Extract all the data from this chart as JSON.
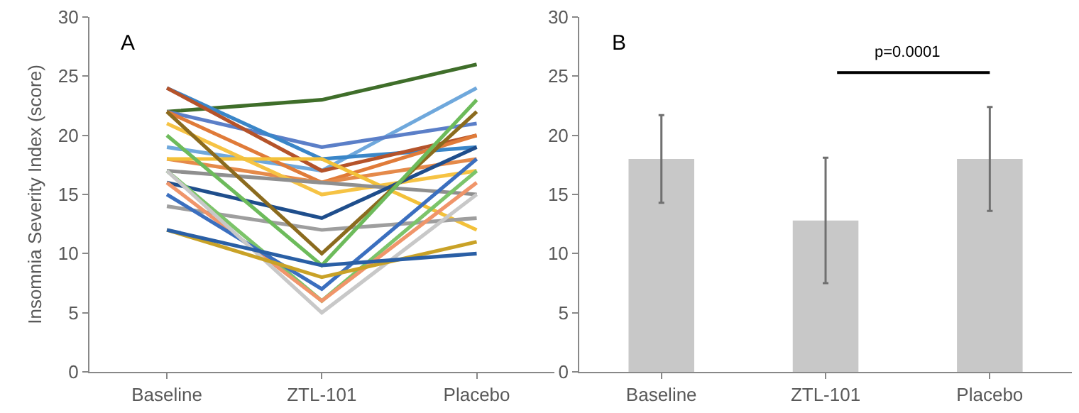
{
  "chart_data": [
    {
      "type": "line",
      "ylabel": "Insomnia Severity Index (score)",
      "annotations": [
        "A"
      ],
      "categories": [
        "Baseline",
        "ZTL-101",
        "Placebo"
      ],
      "ylim": [
        0,
        30
      ],
      "yticks": [
        0,
        5,
        10,
        15,
        20,
        25,
        30
      ],
      "marker": "none",
      "line_style": "solid",
      "series": [
        {
          "color": "#3f6e2a",
          "values": [
            22,
            23,
            26
          ]
        },
        {
          "color": "#6fa8dc",
          "values": [
            19,
            17,
            24
          ]
        },
        {
          "color": "#5b7fc8",
          "values": [
            22,
            19,
            21
          ]
        },
        {
          "color": "#3a86c8",
          "values": [
            24,
            18,
            19
          ]
        },
        {
          "color": "#b5532a",
          "values": [
            24,
            17,
            20
          ]
        },
        {
          "color": "#e07b39",
          "values": [
            22,
            16,
            20
          ]
        },
        {
          "color": "#e58a4a",
          "values": [
            18,
            16,
            18
          ]
        },
        {
          "color": "#f6c344",
          "values": [
            21,
            15,
            17
          ]
        },
        {
          "color": "#f3c13a",
          "values": [
            18,
            18,
            12
          ]
        },
        {
          "color": "#8f8f8f",
          "values": [
            17,
            16,
            15
          ]
        },
        {
          "color": "#9e9e9e",
          "values": [
            14,
            12,
            13
          ]
        },
        {
          "color": "#1f4e8c",
          "values": [
            16,
            13,
            19
          ]
        },
        {
          "color": "#8b6b1e",
          "values": [
            22,
            10,
            22
          ]
        },
        {
          "color": "#6dbb5b",
          "values": [
            20,
            9,
            23
          ]
        },
        {
          "color": "#7cc46a",
          "values": [
            17,
            6,
            17
          ]
        },
        {
          "color": "#f0956a",
          "values": [
            16,
            6,
            16
          ]
        },
        {
          "color": "#3b6fbf",
          "values": [
            15,
            7,
            18
          ]
        },
        {
          "color": "#c8c8c8",
          "values": [
            17,
            5,
            15
          ]
        },
        {
          "color": "#c9a227",
          "values": [
            12,
            8,
            11
          ]
        },
        {
          "color": "#2a5fa5",
          "values": [
            12,
            9,
            10
          ]
        }
      ]
    },
    {
      "type": "bar",
      "annotations": [
        "B",
        "p=0.0001"
      ],
      "categories": [
        "Baseline",
        "ZTL-101",
        "Placebo"
      ],
      "values": [
        18,
        12.8,
        18
      ],
      "errors": [
        3.7,
        5.3,
        4.4
      ],
      "color": "#c8c8c8",
      "ylim": [
        0,
        30
      ],
      "yticks": [
        0,
        5,
        10,
        15,
        20,
        25,
        30
      ]
    }
  ]
}
